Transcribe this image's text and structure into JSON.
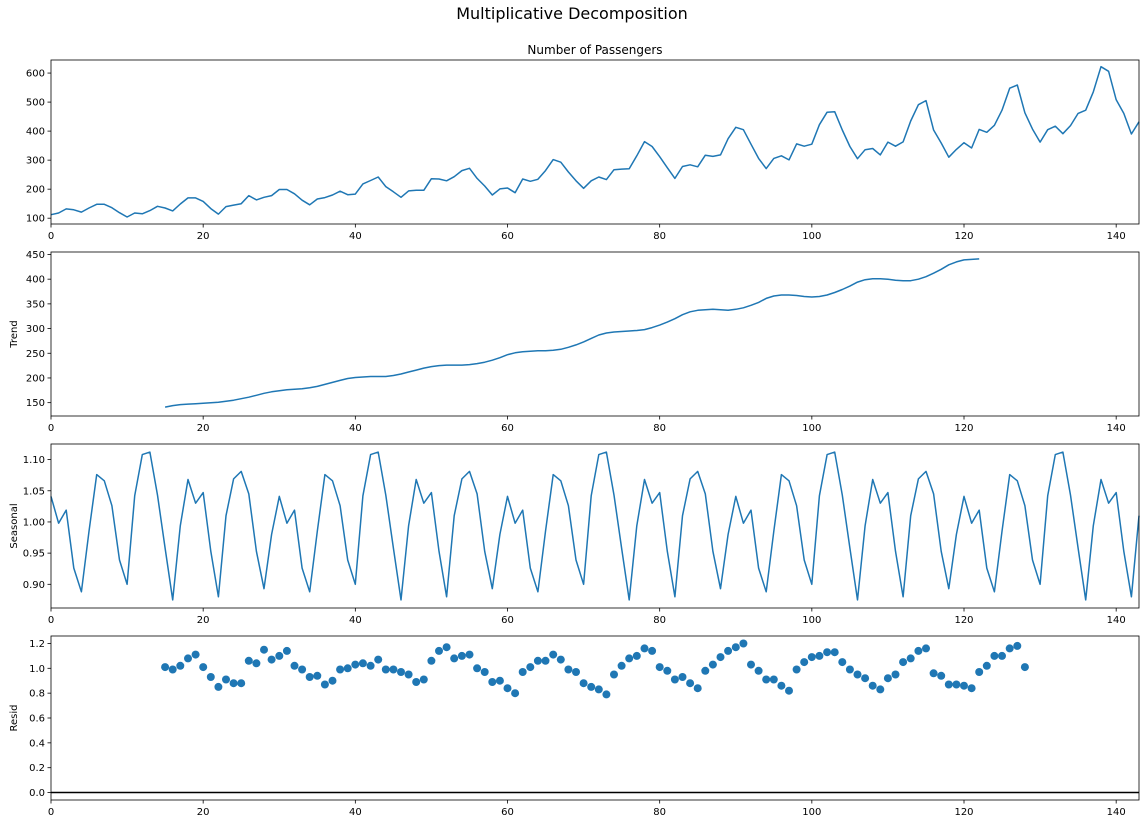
{
  "title": "Multiplicative Decomposition",
  "colors": {
    "series": "#1f77b4",
    "axis": "#000000",
    "baseline": "#000000"
  },
  "chart_data": [
    {
      "type": "line",
      "panel": "observed",
      "title": "Number of Passengers",
      "ylabel": "",
      "xlim": [
        0,
        143
      ],
      "ylim": [
        80,
        645
      ],
      "xticks": [
        0,
        20,
        40,
        60,
        80,
        100,
        120,
        140
      ],
      "yticks": [
        100,
        200,
        300,
        400,
        500,
        600
      ],
      "x_start": 0,
      "values": [
        112,
        118,
        132,
        129,
        121,
        135,
        148,
        148,
        136,
        119,
        104,
        118,
        115,
        126,
        141,
        135,
        125,
        149,
        170,
        170,
        158,
        133,
        114,
        140,
        145,
        150,
        178,
        163,
        172,
        178,
        199,
        199,
        184,
        162,
        146,
        166,
        171,
        180,
        193,
        181,
        183,
        218,
        230,
        242,
        209,
        191,
        172,
        194,
        196,
        196,
        236,
        235,
        229,
        243,
        264,
        272,
        237,
        211,
        180,
        201,
        204,
        188,
        235,
        227,
        234,
        264,
        302,
        293,
        259,
        229,
        203,
        229,
        242,
        233,
        267,
        269,
        270,
        315,
        364,
        347,
        312,
        274,
        237,
        278,
        284,
        277,
        317,
        313,
        318,
        374,
        413,
        405,
        355,
        306,
        271,
        306,
        315,
        301,
        356,
        348,
        355,
        422,
        465,
        467,
        404,
        347,
        305,
        336,
        340,
        318,
        362,
        348,
        363,
        435,
        491,
        505,
        404,
        359,
        310,
        337,
        360,
        342,
        406,
        396,
        420,
        472,
        548,
        559,
        463,
        407,
        362,
        405,
        417,
        391,
        419,
        461,
        472,
        535,
        622,
        606,
        508,
        461,
        390,
        432
      ]
    },
    {
      "type": "line",
      "panel": "trend",
      "title": "",
      "ylabel": "Trend",
      "xlim": [
        0,
        143
      ],
      "ylim": [
        123,
        455
      ],
      "xticks": [
        0,
        20,
        40,
        60,
        80,
        100,
        120,
        140
      ],
      "yticks": [
        150,
        200,
        250,
        300,
        350,
        400,
        450
      ],
      "x_start": 15,
      "values": [
        141,
        144,
        146,
        147,
        148,
        149,
        150,
        151,
        153,
        155,
        158,
        161,
        165,
        169,
        172,
        174,
        176,
        177,
        178,
        180,
        183,
        187,
        191,
        195,
        199,
        201,
        202,
        203,
        203,
        203,
        205,
        208,
        212,
        216,
        220,
        223,
        225,
        226,
        226,
        226,
        227,
        229,
        232,
        236,
        241,
        247,
        251,
        253,
        254,
        255,
        255,
        256,
        258,
        262,
        267,
        273,
        280,
        287,
        291,
        293,
        294,
        295,
        296,
        298,
        302,
        307,
        313,
        320,
        328,
        334,
        337,
        338,
        339,
        338,
        337,
        339,
        342,
        347,
        353,
        361,
        366,
        368,
        368,
        367,
        365,
        364,
        365,
        368,
        373,
        379,
        386,
        394,
        399,
        401,
        401,
        400,
        398,
        397,
        397,
        400,
        405,
        412,
        420,
        429,
        435,
        439,
        440,
        441
      ]
    },
    {
      "type": "line",
      "panel": "seasonal",
      "title": "",
      "ylabel": "Seasonal",
      "xlim": [
        0,
        143
      ],
      "ylim": [
        0.862,
        1.125
      ],
      "xticks": [
        0,
        20,
        40,
        60,
        80,
        100,
        120,
        140
      ],
      "yticks": [
        0.9,
        0.95,
        1.0,
        1.05,
        1.1
      ],
      "x_start": 0,
      "values": [
        1.041,
        0.998,
        1.019,
        0.926,
        0.888,
        0.985,
        1.076,
        1.066,
        1.026,
        0.939,
        0.9,
        1.042,
        1.108,
        1.112,
        1.043,
        0.958,
        0.875,
        0.994,
        1.068,
        1.03,
        1.047,
        0.953,
        0.88,
        1.01,
        1.069,
        1.081,
        1.045,
        0.953,
        0.893,
        0.98,
        1.041,
        0.998,
        1.019,
        0.926,
        0.888,
        0.985,
        1.076,
        1.066,
        1.026,
        0.939,
        0.9,
        1.042,
        1.108,
        1.112,
        1.043,
        0.958,
        0.875,
        0.994,
        1.068,
        1.03,
        1.047,
        0.953,
        0.88,
        1.01,
        1.069,
        1.081,
        1.045,
        0.953,
        0.893,
        0.98,
        1.041,
        0.998,
        1.019,
        0.926,
        0.888,
        0.985,
        1.076,
        1.066,
        1.026,
        0.939,
        0.9,
        1.042,
        1.108,
        1.112,
        1.043,
        0.958,
        0.875,
        0.994,
        1.068,
        1.03,
        1.047,
        0.953,
        0.88,
        1.01,
        1.069,
        1.081,
        1.045,
        0.953,
        0.893,
        0.98,
        1.041,
        0.998,
        1.019,
        0.926,
        0.888,
        0.985,
        1.076,
        1.066,
        1.026,
        0.939,
        0.9,
        1.042,
        1.108,
        1.112,
        1.043,
        0.958,
        0.875,
        0.994,
        1.068,
        1.03,
        1.047,
        0.953,
        0.88,
        1.01,
        1.069,
        1.081,
        1.045,
        0.953,
        0.893,
        0.98,
        1.041,
        0.998,
        1.019,
        0.926,
        0.888,
        0.985,
        1.076,
        1.066,
        1.026,
        0.939,
        0.9,
        1.042,
        1.108,
        1.112,
        1.043,
        0.958,
        0.875,
        0.994,
        1.068,
        1.03,
        1.047,
        0.953,
        0.88,
        1.01
      ]
    },
    {
      "type": "scatter",
      "panel": "resid",
      "title": "",
      "ylabel": "Resid",
      "xlim": [
        0,
        143
      ],
      "ylim": [
        -0.06,
        1.26
      ],
      "xticks": [
        0,
        20,
        40,
        60,
        80,
        100,
        120,
        140
      ],
      "yticks": [
        0.0,
        0.2,
        0.4,
        0.6,
        0.8,
        1.0,
        1.2
      ],
      "baseline": 0,
      "x_start": 15,
      "values": [
        1.01,
        0.99,
        1.02,
        1.08,
        1.11,
        1.01,
        0.93,
        0.85,
        0.91,
        0.88,
        0.88,
        1.06,
        1.04,
        1.15,
        1.07,
        1.1,
        1.14,
        1.02,
        0.99,
        0.93,
        0.94,
        0.87,
        0.9,
        0.99,
        1.0,
        1.03,
        1.04,
        1.02,
        1.07,
        0.99,
        0.99,
        0.97,
        0.95,
        0.89,
        0.91,
        1.06,
        1.14,
        1.17,
        1.08,
        1.1,
        1.11,
        1.0,
        0.97,
        0.89,
        0.9,
        0.84,
        0.8,
        0.97,
        1.01,
        1.06,
        1.06,
        1.11,
        1.07,
        0.99,
        0.97,
        0.88,
        0.85,
        0.83,
        0.79,
        0.95,
        1.02,
        1.08,
        1.1,
        1.16,
        1.14,
        1.01,
        0.98,
        0.91,
        0.93,
        0.88,
        0.84,
        0.98,
        1.03,
        1.09,
        1.14,
        1.17,
        1.2,
        1.03,
        0.98,
        0.91,
        0.91,
        0.86,
        0.82,
        0.99,
        1.05,
        1.09,
        1.1,
        1.13,
        1.13,
        1.05,
        0.99,
        0.95,
        0.92,
        0.86,
        0.83,
        0.92,
        0.95,
        1.05,
        1.08,
        1.14,
        1.16,
        0.96,
        0.94,
        0.87,
        0.87,
        0.86,
        0.84,
        0.97,
        1.02,
        1.1,
        1.1,
        1.16,
        1.18,
        1.01
      ]
    }
  ]
}
